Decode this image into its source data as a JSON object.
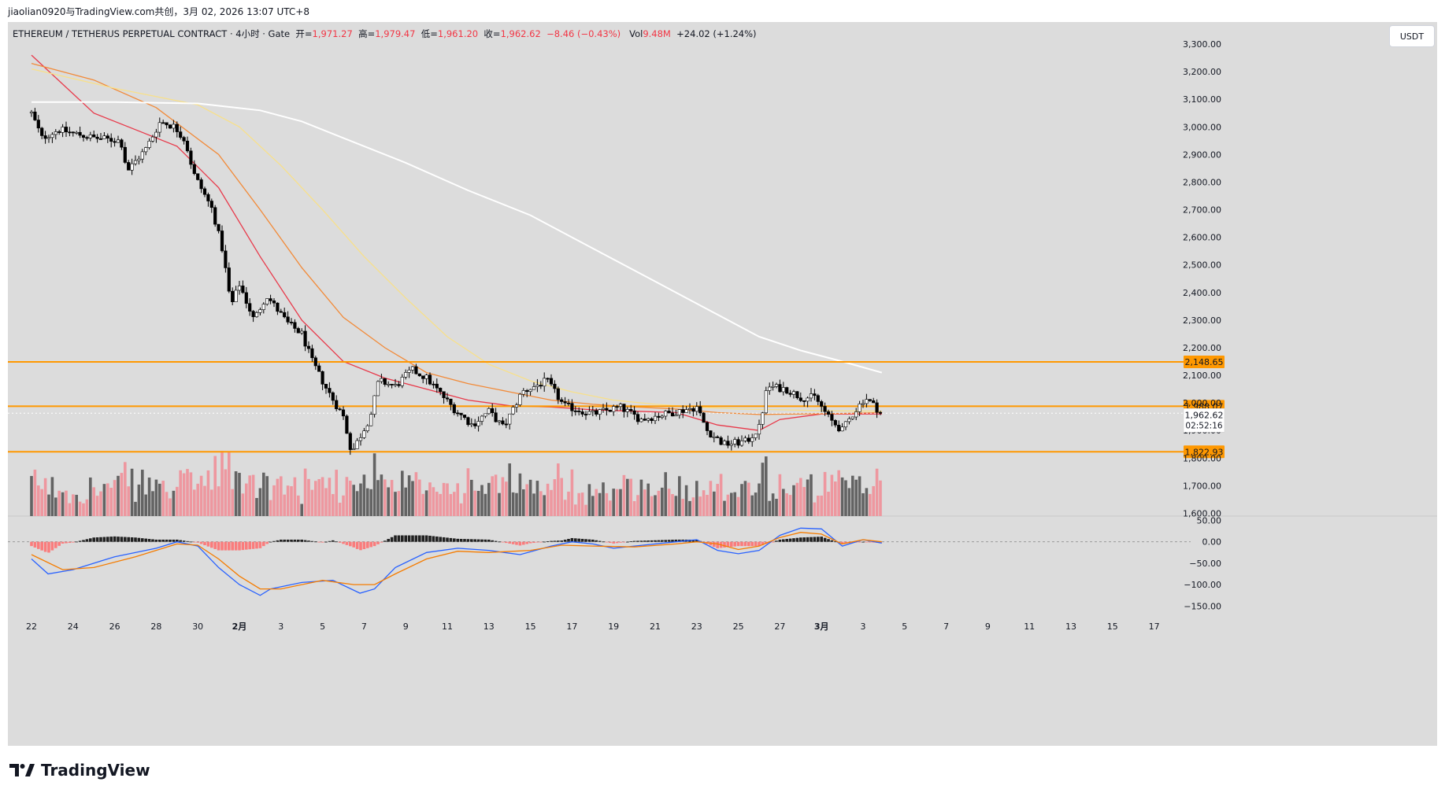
{
  "header": {
    "share_line": "jiaolian0920与TradingView.com共创，3月 02, 2026 13:07 UTC+8"
  },
  "legend": {
    "symbol": "ETHEREUM / TETHERUS PERPETUAL CONTRACT · 4小时 · Gate",
    "open_label": "开=",
    "open": "1,971.27",
    "high_label": "高=",
    "high": "1,979.47",
    "low_label": "低=",
    "low": "1,961.20",
    "close_label": "收=",
    "close": "1,962.62",
    "change": "−8.46 (−0.43%)",
    "vol_label": "Vol",
    "vol": "9.48M",
    "vol_change": "+24.02 (+1.24%)"
  },
  "unit_button": "USDT",
  "brand": {
    "name": "TradingView"
  },
  "colors": {
    "background": "#dcdcdc",
    "up": "#ffffff",
    "down": "#000000",
    "vol_up": "#555555",
    "vol_down": "#f08f98",
    "ma_red": "#e8394a",
    "ma_orange": "#f28a38",
    "ma_yellow": "#f8e08a",
    "ma_white": "#ffffff",
    "level": "#ff9800",
    "macd": "#2962ff",
    "signal": "#f57c00",
    "hist_pos": "#000000",
    "hist_neg": "#ff6b6b"
  },
  "chart_data": {
    "type": "candlestick",
    "title": "ETHEREUM / TETHERUS PERPETUAL CONTRACT · 4小时 · Gate",
    "y_axis": {
      "unit": "USDT",
      "range": [
        1590,
        3380
      ],
      "ticks": [
        "3,300.00",
        "3,200.00",
        "3,100.00",
        "3,000.00",
        "2,900.00",
        "2,800.00",
        "2,700.00",
        "2,600.00",
        "2,500.00",
        "2,400.00",
        "2,300.00",
        "2,200.00",
        "2,100.00",
        "2,000.00",
        "1,900.00",
        "1,800.00",
        "1,700.00",
        "1,600.00"
      ],
      "tick_values": [
        3300,
        3200,
        3100,
        3000,
        2900,
        2800,
        2700,
        2600,
        2500,
        2400,
        2300,
        2200,
        2100,
        2000,
        1900,
        1800,
        1700,
        1600
      ]
    },
    "x_axis": {
      "labels": [
        "22",
        "24",
        "26",
        "28",
        "30",
        "2月",
        "3",
        "5",
        "7",
        "9",
        "11",
        "13",
        "15",
        "17",
        "19",
        "21",
        "23",
        "25",
        "27",
        "3月",
        "3",
        "5",
        "7",
        "9",
        "11",
        "13",
        "15",
        "17"
      ],
      "label_days": [
        0,
        2,
        4,
        6,
        8,
        10,
        12,
        14,
        16,
        18,
        20,
        22,
        24,
        26,
        28,
        30,
        32,
        34,
        36,
        38,
        40,
        42,
        44,
        46,
        48,
        50,
        52,
        54
      ],
      "bold_labels": [
        "2月",
        "3月"
      ],
      "first_date": "Jan 22",
      "bars_per_day": 6
    },
    "price_keyframes": [
      {
        "day": 0,
        "price": 3050
      },
      {
        "day": 0.5,
        "price": 2960
      },
      {
        "day": 1.3,
        "price": 2990
      },
      {
        "day": 3,
        "price": 2960
      },
      {
        "day": 4.3,
        "price": 2950
      },
      {
        "day": 4.6,
        "price": 2840
      },
      {
        "day": 5.5,
        "price": 2920
      },
      {
        "day": 6.2,
        "price": 3020
      },
      {
        "day": 6.9,
        "price": 3000
      },
      {
        "day": 7.4,
        "price": 2950
      },
      {
        "day": 7.8,
        "price": 2830
      },
      {
        "day": 8.7,
        "price": 2700
      },
      {
        "day": 9.2,
        "price": 2550
      },
      {
        "day": 9.6,
        "price": 2350
      },
      {
        "day": 10.0,
        "price": 2430
      },
      {
        "day": 10.7,
        "price": 2300
      },
      {
        "day": 11.3,
        "price": 2390
      },
      {
        "day": 12.3,
        "price": 2290
      },
      {
        "day": 13.0,
        "price": 2250
      },
      {
        "day": 13.5,
        "price": 2150
      },
      {
        "day": 14.2,
        "price": 2050
      },
      {
        "day": 15.0,
        "price": 1950
      },
      {
        "day": 15.4,
        "price": 1820
      },
      {
        "day": 16.3,
        "price": 1950
      },
      {
        "day": 16.7,
        "price": 2080
      },
      {
        "day": 17.5,
        "price": 2060
      },
      {
        "day": 18.3,
        "price": 2120
      },
      {
        "day": 19.0,
        "price": 2090
      },
      {
        "day": 19.6,
        "price": 2040
      },
      {
        "day": 20.3,
        "price": 1980
      },
      {
        "day": 21.2,
        "price": 1920
      },
      {
        "day": 22.0,
        "price": 1970
      },
      {
        "day": 22.7,
        "price": 1910
      },
      {
        "day": 23.6,
        "price": 2040
      },
      {
        "day": 24.8,
        "price": 2080
      },
      {
        "day": 25.6,
        "price": 1990
      },
      {
        "day": 27.0,
        "price": 1960
      },
      {
        "day": 28.3,
        "price": 1985
      },
      {
        "day": 29.3,
        "price": 1940
      },
      {
        "day": 30.5,
        "price": 1960
      },
      {
        "day": 32.0,
        "price": 1985
      },
      {
        "day": 32.5,
        "price": 1900
      },
      {
        "day": 33.3,
        "price": 1850
      },
      {
        "day": 34.4,
        "price": 1860
      },
      {
        "day": 35.0,
        "price": 1910
      },
      {
        "day": 35.4,
        "price": 2060
      },
      {
        "day": 36.3,
        "price": 2050
      },
      {
        "day": 37.0,
        "price": 2020
      },
      {
        "day": 37.7,
        "price": 2020
      },
      {
        "day": 38.4,
        "price": 1940
      },
      {
        "day": 39.0,
        "price": 1900
      },
      {
        "day": 39.5,
        "price": 1960
      },
      {
        "day": 40.1,
        "price": 2020
      },
      {
        "day": 40.9,
        "price": 1963
      }
    ],
    "moving_averages": [
      {
        "name": "MA-short",
        "color": "ma_red",
        "points": [
          [
            0,
            3260
          ],
          [
            3,
            3050
          ],
          [
            5,
            2990
          ],
          [
            7,
            2930
          ],
          [
            9,
            2780
          ],
          [
            11,
            2530
          ],
          [
            13,
            2300
          ],
          [
            15,
            2150
          ],
          [
            17,
            2090
          ],
          [
            19,
            2050
          ],
          [
            21,
            2010
          ],
          [
            23,
            1990
          ],
          [
            25,
            1985
          ],
          [
            27,
            1975
          ],
          [
            29,
            1970
          ],
          [
            31,
            1965
          ],
          [
            33,
            1920
          ],
          [
            35,
            1900
          ],
          [
            36,
            1940
          ],
          [
            38,
            1960
          ],
          [
            40.9,
            1960
          ]
        ]
      },
      {
        "name": "MA-mid",
        "color": "ma_orange",
        "points": [
          [
            0,
            3230
          ],
          [
            3,
            3170
          ],
          [
            6,
            3070
          ],
          [
            9,
            2900
          ],
          [
            11,
            2700
          ],
          [
            13,
            2490
          ],
          [
            15,
            2310
          ],
          [
            17,
            2200
          ],
          [
            19,
            2110
          ],
          [
            21,
            2070
          ],
          [
            23,
            2040
          ],
          [
            25,
            2010
          ],
          [
            27,
            1995
          ],
          [
            29,
            1985
          ],
          [
            31,
            1978
          ],
          [
            33,
            1965
          ],
          [
            35,
            1958
          ],
          [
            37,
            1960
          ],
          [
            39,
            1962
          ],
          [
            40.9,
            1965
          ]
        ]
      },
      {
        "name": "MA-long",
        "color": "ma_yellow",
        "points": [
          [
            0,
            3210
          ],
          [
            4,
            3140
          ],
          [
            8,
            3080
          ],
          [
            10,
            3000
          ],
          [
            12,
            2860
          ],
          [
            14,
            2700
          ],
          [
            16,
            2530
          ],
          [
            18,
            2380
          ],
          [
            20,
            2240
          ],
          [
            22,
            2140
          ],
          [
            24,
            2080
          ],
          [
            26,
            2040
          ],
          [
            28,
            2010
          ],
          [
            30,
            1995
          ],
          [
            32,
            1985
          ],
          [
            34,
            1978
          ],
          [
            36,
            1975
          ],
          [
            38,
            1972
          ],
          [
            40.9,
            1970
          ]
        ]
      },
      {
        "name": "MA-200",
        "color": "ma_white",
        "points": [
          [
            0,
            3090
          ],
          [
            4,
            3090
          ],
          [
            8,
            3085
          ],
          [
            11,
            3060
          ],
          [
            13,
            3020
          ],
          [
            15,
            2960
          ],
          [
            18,
            2870
          ],
          [
            21,
            2770
          ],
          [
            24,
            2680
          ],
          [
            27,
            2560
          ],
          [
            30,
            2440
          ],
          [
            33,
            2320
          ],
          [
            35,
            2240
          ],
          [
            37,
            2190
          ],
          [
            39,
            2150
          ],
          [
            40.9,
            2110
          ]
        ]
      }
    ],
    "horizontal_levels": [
      {
        "price": 2148.65,
        "label": "2,148.65"
      },
      {
        "price": 1988.07,
        "label": "1,988.07"
      },
      {
        "price": 1822.93,
        "label": "1,822.93"
      }
    ],
    "last_price": {
      "price": 1962.62,
      "label": "1,962.62",
      "countdown": "02:52:16"
    },
    "volume_range": [
      0,
      330
    ],
    "macd": {
      "y_range": [
        -175,
        60
      ],
      "ticks": [
        "50.00",
        "0.00",
        "−50.00",
        "−100.00",
        "−150.00"
      ],
      "tick_values": [
        50,
        0,
        -50,
        -100,
        -150
      ],
      "macd_points": [
        [
          0,
          -40
        ],
        [
          0.8,
          -75
        ],
        [
          2,
          -65
        ],
        [
          4,
          -35
        ],
        [
          6,
          -15
        ],
        [
          7,
          0
        ],
        [
          8,
          -10
        ],
        [
          9,
          -60
        ],
        [
          10,
          -100
        ],
        [
          11,
          -125
        ],
        [
          11.5,
          -110
        ],
        [
          13,
          -95
        ],
        [
          14.5,
          -90
        ],
        [
          15.8,
          -120
        ],
        [
          16.5,
          -110
        ],
        [
          17.5,
          -60
        ],
        [
          19,
          -25
        ],
        [
          20.5,
          -15
        ],
        [
          22,
          -20
        ],
        [
          23.5,
          -30
        ],
        [
          25,
          -10
        ],
        [
          26,
          0
        ],
        [
          27,
          -5
        ],
        [
          28,
          -15
        ],
        [
          29,
          -10
        ],
        [
          31,
          0
        ],
        [
          32,
          5
        ],
        [
          33,
          -20
        ],
        [
          34,
          -28
        ],
        [
          35,
          -20
        ],
        [
          36,
          15
        ],
        [
          37,
          32
        ],
        [
          38,
          30
        ],
        [
          39,
          -10
        ],
        [
          40,
          5
        ],
        [
          40.9,
          -3
        ]
      ],
      "signal_points": [
        [
          0,
          -30
        ],
        [
          1.5,
          -65
        ],
        [
          3,
          -60
        ],
        [
          5,
          -35
        ],
        [
          7,
          -5
        ],
        [
          8,
          -8
        ],
        [
          9,
          -40
        ],
        [
          10,
          -80
        ],
        [
          11,
          -110
        ],
        [
          12,
          -110
        ],
        [
          14,
          -90
        ],
        [
          15.5,
          -100
        ],
        [
          16.5,
          -100
        ],
        [
          17.5,
          -75
        ],
        [
          19,
          -40
        ],
        [
          20.5,
          -22
        ],
        [
          22,
          -25
        ],
        [
          24,
          -20
        ],
        [
          25.5,
          -8
        ],
        [
          27,
          -10
        ],
        [
          29,
          -12
        ],
        [
          31,
          -5
        ],
        [
          32,
          0
        ],
        [
          33,
          -5
        ],
        [
          34,
          -18
        ],
        [
          35,
          -10
        ],
        [
          36,
          10
        ],
        [
          37,
          22
        ],
        [
          38,
          18
        ],
        [
          39,
          -5
        ],
        [
          40,
          5
        ],
        [
          40.9,
          0
        ]
      ]
    }
  }
}
